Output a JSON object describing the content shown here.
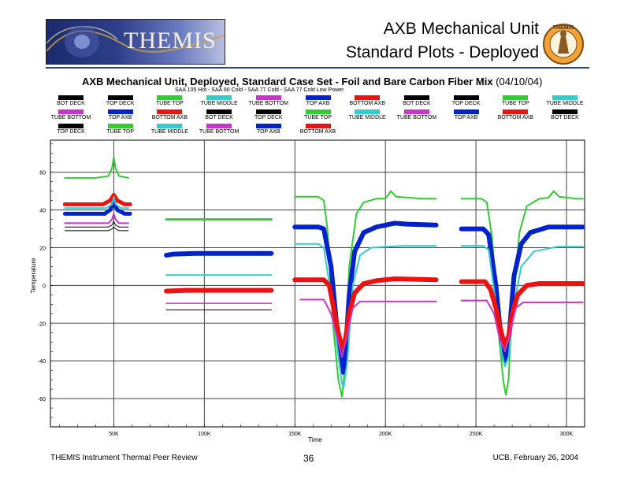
{
  "slide": {
    "title_line1": "AXB Mechanical Unit",
    "title_line2": "Standard Plots - Deployed",
    "logo_text": "THEMIS",
    "seal_text": "THEMIS",
    "footer_left": "THEMIS Instrument Thermal Peer Review",
    "footer_center": "36",
    "footer_right": "UCB, February 26, 2004",
    "accent_color": "#2a3f8f"
  },
  "chart_data": {
    "type": "line",
    "title": "AXB Mechanical Unit, Deployed, Standard Case Set - Foil and Bare Carbon Fiber Mix",
    "title_date": "(04/10/04)",
    "subtitle": "SAA 105 Hot - SAA 90 Cold - SAA 77 Cold - SAA 77 Cold Low Power",
    "xlabel": "Time",
    "ylabel": "Temperature",
    "xlim": [
      15000,
      310000
    ],
    "ylim": [
      -75,
      77
    ],
    "x_ticks": [
      {
        "value": 50000,
        "label": "50K"
      },
      {
        "value": 100000,
        "label": "100K"
      },
      {
        "value": 150000,
        "label": "150K"
      },
      {
        "value": 200000,
        "label": "200K"
      },
      {
        "value": 250000,
        "label": "250K"
      },
      {
        "value": 300000,
        "label": "300K"
      }
    ],
    "y_ticks": [
      {
        "value": 60,
        "label": "60"
      },
      {
        "value": 40,
        "label": "40"
      },
      {
        "value": 20,
        "label": "20"
      },
      {
        "value": 0,
        "label": "0"
      },
      {
        "value": -20,
        "label": "-20"
      },
      {
        "value": -40,
        "label": "-40"
      },
      {
        "value": -60,
        "label": "-60"
      }
    ],
    "grid": true,
    "legend_position": "top",
    "legend": [
      {
        "label": "BOT DECK",
        "color": "#000000"
      },
      {
        "label": "TOP DECK",
        "color": "#000000"
      },
      {
        "label": "TUBE TOP",
        "color": "#33cc33"
      },
      {
        "label": "TUBE MIDDLE",
        "color": "#33cccc"
      },
      {
        "label": "TUBE BOTTOM",
        "color": "#cc33cc"
      },
      {
        "label": "TOP AXB",
        "color": "#0022cc"
      },
      {
        "label": "BOTTOM AXB",
        "color": "#ee1111"
      },
      {
        "label": "BOT DECK",
        "color": "#000000"
      },
      {
        "label": "TOP DECK",
        "color": "#000000"
      },
      {
        "label": "TUBE TOP",
        "color": "#33cc33"
      },
      {
        "label": "TUBE MIDDLE",
        "color": "#33cccc"
      },
      {
        "label": "TUBE BOTTOM",
        "color": "#cc33cc"
      },
      {
        "label": "TOP AXB",
        "color": "#0022cc"
      },
      {
        "label": "BOTTOM AXB",
        "color": "#ee1111"
      },
      {
        "label": "BOT DECK",
        "color": "#000000"
      },
      {
        "label": "TOP DECK",
        "color": "#000000"
      },
      {
        "label": "TUBE TOP",
        "color": "#33cc33"
      },
      {
        "label": "TUBE MIDDLE",
        "color": "#33cccc"
      },
      {
        "label": "TUBE BOTTOM",
        "color": "#cc33cc"
      },
      {
        "label": "TOP AXB",
        "color": "#0022cc"
      },
      {
        "label": "BOTTOM AXB",
        "color": "#ee1111"
      },
      {
        "label": "BOT DECK",
        "color": "#000000"
      },
      {
        "label": "TOP DECK",
        "color": "#000000"
      },
      {
        "label": "TUBE TOP",
        "color": "#33cc33"
      },
      {
        "label": "TUBE MIDDLE",
        "color": "#33cccc"
      },
      {
        "label": "TUBE BOTTOM",
        "color": "#cc33cc"
      },
      {
        "label": "TOP AXB",
        "color": "#0022cc"
      },
      {
        "label": "BOTTOM AXB",
        "color": "#ee1111"
      }
    ],
    "series": [
      {
        "case": 1,
        "name": "TUBE TOP",
        "color": "#33cc33",
        "width": 2,
        "points": [
          [
            23000,
            57
          ],
          [
            40000,
            57
          ],
          [
            47000,
            58
          ],
          [
            49000,
            62
          ],
          [
            50000,
            68
          ],
          [
            51000,
            62
          ],
          [
            53000,
            58
          ],
          [
            58000,
            57
          ]
        ]
      },
      {
        "case": 1,
        "name": "BOTTOM AXB",
        "color": "#ee1111",
        "width": 5,
        "points": [
          [
            23000,
            43
          ],
          [
            44000,
            43
          ],
          [
            48000,
            45
          ],
          [
            50000,
            48
          ],
          [
            52000,
            45
          ],
          [
            56000,
            43
          ],
          [
            59000,
            43
          ]
        ]
      },
      {
        "case": 1,
        "name": "TOP AXB",
        "color": "#0022cc",
        "width": 5,
        "points": [
          [
            23000,
            38
          ],
          [
            45000,
            38
          ],
          [
            48000,
            40
          ],
          [
            50000,
            44
          ],
          [
            52000,
            40
          ],
          [
            56000,
            38
          ],
          [
            59000,
            38
          ]
        ]
      },
      {
        "case": 1,
        "name": "TUBE MIDDLE",
        "color": "#33cccc",
        "width": 2,
        "points": [
          [
            23000,
            41
          ],
          [
            46000,
            41
          ],
          [
            49000,
            43
          ],
          [
            50000,
            47
          ],
          [
            51000,
            43
          ],
          [
            54000,
            41
          ],
          [
            58000,
            41
          ]
        ]
      },
      {
        "case": 1,
        "name": "TUBE BOTTOM",
        "color": "#cc33cc",
        "width": 2,
        "points": [
          [
            23000,
            33
          ],
          [
            47000,
            33
          ],
          [
            49000,
            35
          ],
          [
            50000,
            38
          ],
          [
            51000,
            35
          ],
          [
            53000,
            33
          ],
          [
            58000,
            33
          ]
        ]
      },
      {
        "case": 1,
        "name": "BOT DECK",
        "color": "#000000",
        "width": 1,
        "points": [
          [
            23000,
            31
          ],
          [
            47000,
            31
          ],
          [
            49000,
            32
          ],
          [
            50000,
            34
          ],
          [
            51000,
            32
          ],
          [
            53000,
            31
          ],
          [
            58000,
            31
          ]
        ]
      },
      {
        "case": 1,
        "name": "TOP DECK",
        "color": "#000000",
        "width": 1,
        "points": [
          [
            23000,
            29
          ],
          [
            47000,
            29
          ],
          [
            49000,
            30
          ],
          [
            50000,
            31
          ],
          [
            51000,
            30
          ],
          [
            53000,
            29
          ],
          [
            58000,
            29
          ]
        ]
      },
      {
        "case": 2,
        "name": "TUBE TOP",
        "color": "#33cc33",
        "width": 3,
        "points": [
          [
            79000,
            35
          ],
          [
            137000,
            35
          ]
        ]
      },
      {
        "case": 2,
        "name": "TOP AXB",
        "color": "#0022cc",
        "width": 6,
        "points": [
          [
            79000,
            16
          ],
          [
            83000,
            16.6
          ],
          [
            95000,
            17
          ],
          [
            137000,
            17
          ]
        ]
      },
      {
        "case": 2,
        "name": "TUBE MIDDLE",
        "color": "#33cccc",
        "width": 2,
        "points": [
          [
            79000,
            5.5
          ],
          [
            137000,
            5.5
          ]
        ]
      },
      {
        "case": 2,
        "name": "BOTTOM AXB",
        "color": "#ee1111",
        "width": 6,
        "points": [
          [
            79000,
            -3
          ],
          [
            90000,
            -2.6
          ],
          [
            137000,
            -2.6
          ]
        ]
      },
      {
        "case": 2,
        "name": "TUBE BOTTOM",
        "color": "#cc33cc",
        "width": 1.5,
        "points": [
          [
            79000,
            -9.5
          ],
          [
            137000,
            -9.5
          ]
        ]
      },
      {
        "case": 2,
        "name": "BOT DECK",
        "color": "#000000",
        "width": 1,
        "points": [
          [
            79000,
            -13
          ],
          [
            137000,
            -13
          ]
        ]
      },
      {
        "case": 3,
        "name": "TUBE TOP",
        "color": "#33cc33",
        "width": 2,
        "points": [
          [
            150000,
            47
          ],
          [
            163000,
            47
          ],
          [
            166000,
            45
          ],
          [
            168000,
            30
          ],
          [
            171000,
            -20
          ],
          [
            174000,
            -50
          ],
          [
            176000,
            -59
          ],
          [
            177000,
            -50
          ],
          [
            180000,
            10
          ],
          [
            184000,
            38
          ],
          [
            188000,
            44
          ],
          [
            195000,
            46
          ],
          [
            200000,
            46
          ],
          [
            203000,
            50
          ],
          [
            206000,
            47
          ],
          [
            220000,
            46
          ],
          [
            228000,
            46
          ]
        ]
      },
      {
        "case": 3,
        "name": "TOP AXB",
        "color": "#0022cc",
        "width": 6,
        "points": [
          [
            150000,
            31
          ],
          [
            163000,
            31
          ],
          [
            166000,
            30
          ],
          [
            170000,
            10
          ],
          [
            173000,
            -20
          ],
          [
            175000,
            -35
          ],
          [
            176500,
            -46
          ],
          [
            178000,
            -35
          ],
          [
            180000,
            -5
          ],
          [
            183000,
            18
          ],
          [
            188000,
            28
          ],
          [
            195000,
            31
          ],
          [
            205000,
            33
          ],
          [
            212000,
            32.5
          ],
          [
            228000,
            32
          ]
        ]
      },
      {
        "case": 3,
        "name": "TUBE MIDDLE",
        "color": "#33cccc",
        "width": 2,
        "points": [
          [
            150000,
            22
          ],
          [
            163000,
            22
          ],
          [
            166000,
            20
          ],
          [
            170000,
            -5
          ],
          [
            173000,
            -30
          ],
          [
            176000,
            -52
          ],
          [
            177000,
            -54
          ],
          [
            179000,
            -40
          ],
          [
            182000,
            0
          ],
          [
            186000,
            16
          ],
          [
            192000,
            20
          ],
          [
            210000,
            21
          ],
          [
            228000,
            21
          ]
        ]
      },
      {
        "case": 3,
        "name": "BOTTOM AXB",
        "color": "#ee1111",
        "width": 6,
        "points": [
          [
            150000,
            3
          ],
          [
            166000,
            3
          ],
          [
            169000,
            0
          ],
          [
            171000,
            -10
          ],
          [
            174000,
            -25
          ],
          [
            176000,
            -33
          ],
          [
            178000,
            -28
          ],
          [
            180000,
            -15
          ],
          [
            183000,
            -4
          ],
          [
            188000,
            1
          ],
          [
            195000,
            2.5
          ],
          [
            205000,
            3.5
          ],
          [
            228000,
            3
          ]
        ]
      },
      {
        "case": 3,
        "name": "TUBE BOTTOM",
        "color": "#cc33cc",
        "width": 2,
        "points": [
          [
            153000,
            -7.5
          ],
          [
            166000,
            -7.5
          ],
          [
            170000,
            -15
          ],
          [
            174000,
            -30
          ],
          [
            176000,
            -38
          ],
          [
            178000,
            -30
          ],
          [
            182000,
            -12
          ],
          [
            186000,
            -8.5
          ],
          [
            228000,
            -8.5
          ]
        ]
      },
      {
        "case": 4,
        "name": "TUBE TOP",
        "color": "#33cc33",
        "width": 2,
        "points": [
          [
            242000,
            46
          ],
          [
            253000,
            46
          ],
          [
            256000,
            44
          ],
          [
            259000,
            25
          ],
          [
            262000,
            -20
          ],
          [
            265000,
            -50
          ],
          [
            266500,
            -58
          ],
          [
            268000,
            -50
          ],
          [
            270000,
            -10
          ],
          [
            274000,
            28
          ],
          [
            278000,
            42
          ],
          [
            285000,
            46
          ],
          [
            290000,
            46.5
          ],
          [
            293000,
            50
          ],
          [
            296000,
            47
          ],
          [
            305000,
            46
          ],
          [
            309000,
            46
          ]
        ]
      },
      {
        "case": 4,
        "name": "TOP AXB",
        "color": "#0022cc",
        "width": 6,
        "points": [
          [
            242000,
            30
          ],
          [
            254000,
            30
          ],
          [
            257000,
            27
          ],
          [
            261000,
            0
          ],
          [
            264000,
            -30
          ],
          [
            266000,
            -40
          ],
          [
            268000,
            -30
          ],
          [
            271000,
            5
          ],
          [
            275000,
            22
          ],
          [
            280000,
            28
          ],
          [
            290000,
            31
          ],
          [
            300000,
            31
          ],
          [
            309000,
            31
          ]
        ]
      },
      {
        "case": 4,
        "name": "TUBE MIDDLE",
        "color": "#33cccc",
        "width": 2,
        "points": [
          [
            242000,
            21
          ],
          [
            254000,
            21
          ],
          [
            257000,
            19
          ],
          [
            261000,
            -10
          ],
          [
            264000,
            -35
          ],
          [
            266000,
            -43
          ],
          [
            268000,
            -38
          ],
          [
            271000,
            -10
          ],
          [
            275000,
            10
          ],
          [
            282000,
            18
          ],
          [
            295000,
            20.5
          ],
          [
            309000,
            20.5
          ]
        ]
      },
      {
        "case": 4,
        "name": "BOTTOM AXB",
        "color": "#ee1111",
        "width": 6,
        "points": [
          [
            242000,
            2
          ],
          [
            255000,
            2
          ],
          [
            258000,
            -2
          ],
          [
            261000,
            -12
          ],
          [
            264000,
            -25
          ],
          [
            266000,
            -32
          ],
          [
            268000,
            -27
          ],
          [
            270000,
            -15
          ],
          [
            273000,
            -5
          ],
          [
            278000,
            0
          ],
          [
            285000,
            1
          ],
          [
            309000,
            1
          ]
        ]
      },
      {
        "case": 4,
        "name": "TUBE BOTTOM",
        "color": "#cc33cc",
        "width": 2,
        "points": [
          [
            242000,
            -8
          ],
          [
            256000,
            -8
          ],
          [
            260000,
            -15
          ],
          [
            263000,
            -28
          ],
          [
            266000,
            -35
          ],
          [
            268000,
            -28
          ],
          [
            272000,
            -12
          ],
          [
            276000,
            -9
          ],
          [
            309000,
            -9
          ]
        ]
      }
    ]
  }
}
